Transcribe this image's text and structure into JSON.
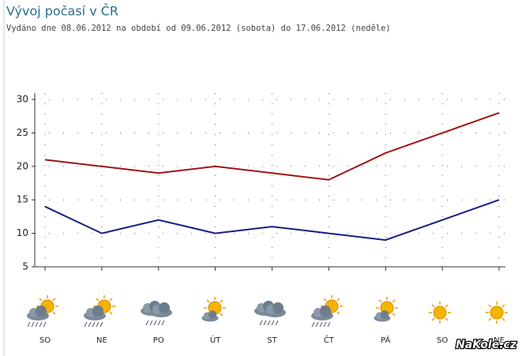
{
  "chart_data": {
    "type": "line",
    "title": "Vývoj počasí v ČR",
    "subtitle": "Vydáno dne 08.06.2012 na období od 09.06.2012 (sobota) do 17.06.2012 (neděle)",
    "categories": [
      "SO",
      "NE",
      "PO",
      "ÚT",
      "ST",
      "ČT",
      "PÁ",
      "SO",
      "NE"
    ],
    "series": [
      {
        "color": "#a01414",
        "values": [
          21,
          20,
          19,
          20,
          19,
          18,
          22,
          25,
          28
        ]
      },
      {
        "color": "#14207e",
        "values": [
          14,
          10,
          12,
          10,
          11,
          10,
          9,
          12,
          15
        ]
      }
    ],
    "ylim": [
      5,
      30
    ],
    "yticks": [
      5,
      10,
      15,
      20,
      25,
      30
    ],
    "grid": true,
    "watermark": "NaKole.cz"
  }
}
